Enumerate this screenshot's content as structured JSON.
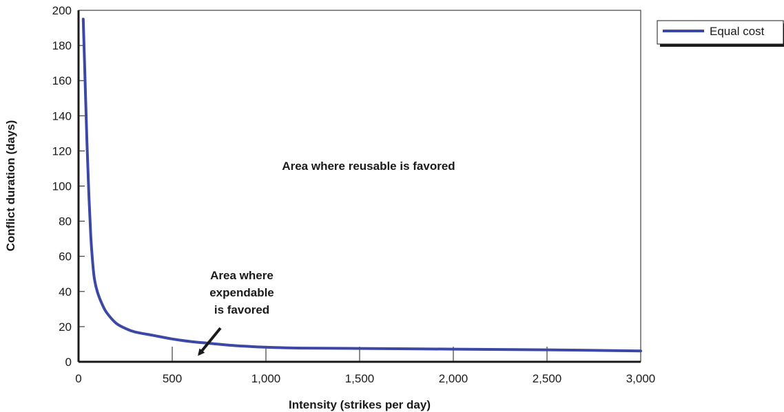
{
  "chart_data": {
    "type": "line",
    "xlabel": "Intensity (strikes per day)",
    "ylabel": "Conflict duration (days)",
    "xlim": [
      0,
      3000
    ],
    "ylim": [
      0,
      200
    ],
    "x_ticks": [
      0,
      500,
      1000,
      1500,
      2000,
      2500,
      3000
    ],
    "x_tick_labels": [
      "0",
      "500",
      "1,000",
      "1,500",
      "2,000",
      "2,500",
      "3,000"
    ],
    "y_ticks": [
      0,
      20,
      40,
      60,
      80,
      100,
      120,
      140,
      160,
      180,
      200
    ],
    "y_tick_labels": [
      "0",
      "20",
      "40",
      "60",
      "80",
      "100",
      "120",
      "140",
      "160",
      "180",
      "200"
    ],
    "grid": false,
    "legend_position": "top-right outside",
    "series": [
      {
        "name": "Equal cost",
        "color": "#3b48a6",
        "x": [
          25,
          35,
          45,
          55,
          65,
          75,
          85,
          100,
          125,
          150,
          200,
          250,
          300,
          400,
          500,
          600,
          700,
          800,
          900,
          1000,
          1200,
          1500,
          2000,
          2500,
          3000
        ],
        "y": [
          195,
          160,
          125,
          95,
          72,
          57,
          47,
          40,
          33,
          28,
          22,
          19,
          17,
          15,
          13,
          11.5,
          10.5,
          9.5,
          8.8,
          8.3,
          7.8,
          7.6,
          7.2,
          6.8,
          6.2
        ]
      }
    ],
    "annotations": {
      "reusable": "Area where reusable is favored",
      "expendable": [
        "Area where",
        "expendable",
        "is favored"
      ]
    }
  }
}
